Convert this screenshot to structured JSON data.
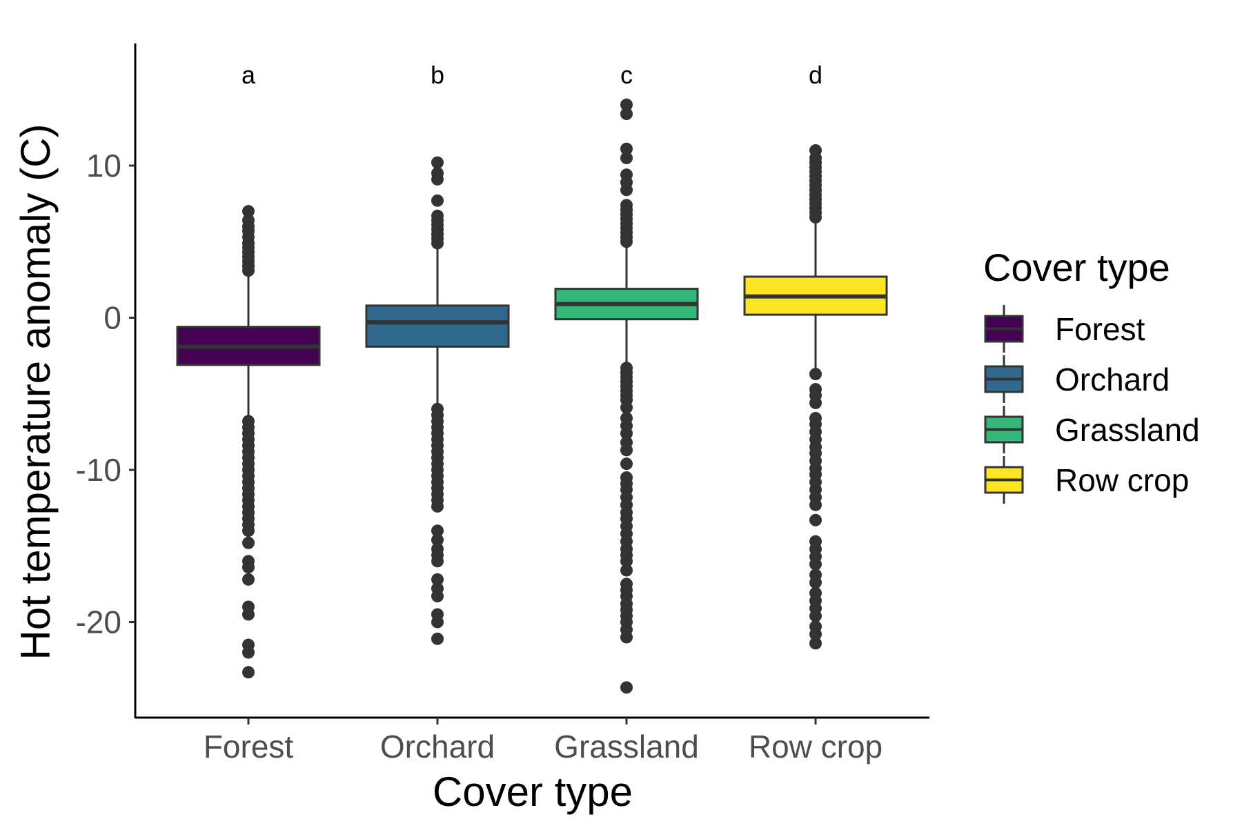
{
  "chart_data": {
    "type": "box",
    "xlabel": "Cover type",
    "ylabel": "Hot temperature anomaly (C)",
    "ylim": [
      -26,
      18
    ],
    "yticks": [
      -20,
      -10,
      0,
      10
    ],
    "ytick_labels": [
      "-20",
      "-10",
      "0",
      "10"
    ],
    "grid": false,
    "legend_position": "right",
    "legend_title": "Cover type",
    "categories": [
      "Forest",
      "Orchard",
      "Grassland",
      "Row crop"
    ],
    "colors": [
      "#440154",
      "#31688E",
      "#35B779",
      "#FDE725"
    ],
    "outline_color": "#333333",
    "outlier_color": "#333333",
    "letters": [
      "a",
      "b",
      "c",
      "d"
    ],
    "boxes": [
      {
        "category": "Forest",
        "q1": -3.1,
        "median": -1.9,
        "q3": -0.6,
        "whisker_low": -6.7,
        "whisker_high": 2.9,
        "outliers_high": [
          3.1,
          3.4,
          3.7,
          4.0,
          4.3,
          4.6,
          4.9,
          5.3,
          5.7,
          6.0,
          6.4,
          7.0
        ],
        "outliers_low": [
          -6.8,
          -7.2,
          -7.6,
          -8.0,
          -8.4,
          -8.8,
          -9.2,
          -9.6,
          -10.0,
          -10.4,
          -10.8,
          -11.2,
          -11.6,
          -12.0,
          -12.4,
          -12.8,
          -13.2,
          -13.6,
          -14.0,
          -14.8,
          -16.0,
          -16.4,
          -17.2,
          -19.0,
          -19.5,
          -21.5,
          -22.0,
          -23.3
        ]
      },
      {
        "category": "Orchard",
        "q1": -1.9,
        "median": -0.3,
        "q3": 0.8,
        "whisker_low": -5.9,
        "whisker_high": 4.6,
        "outliers_high": [
          4.9,
          5.2,
          5.5,
          5.8,
          6.1,
          6.4,
          6.7,
          7.7,
          9.1,
          9.5,
          10.2
        ],
        "outliers_low": [
          -6.0,
          -6.4,
          -6.8,
          -7.2,
          -7.6,
          -8.0,
          -8.4,
          -8.8,
          -9.2,
          -9.6,
          -10.0,
          -10.4,
          -10.8,
          -11.2,
          -11.6,
          -12.0,
          -12.4,
          -14.0,
          -14.6,
          -15.2,
          -15.6,
          -16.0,
          -17.2,
          -17.8,
          -18.3,
          -19.5,
          -20.0,
          -21.1
        ]
      },
      {
        "category": "Grassland",
        "q1": -0.1,
        "median": 0.9,
        "q3": 1.9,
        "whisker_low": -3.1,
        "whisker_high": 4.8,
        "outliers_high": [
          5.0,
          5.3,
          5.6,
          5.9,
          6.2,
          6.5,
          6.8,
          7.1,
          7.4,
          8.4,
          8.9,
          9.4,
          10.5,
          11.1,
          13.4,
          14.0
        ],
        "outliers_low": [
          -3.3,
          -3.6,
          -3.9,
          -4.2,
          -4.5,
          -4.8,
          -5.1,
          -5.4,
          -5.9,
          -6.6,
          -7.1,
          -7.6,
          -8.2,
          -8.7,
          -9.6,
          -10.5,
          -10.9,
          -11.3,
          -11.8,
          -12.3,
          -12.8,
          -13.2,
          -13.7,
          -14.2,
          -14.7,
          -15.2,
          -15.6,
          -16.0,
          -16.6,
          -17.5,
          -17.9,
          -18.3,
          -18.8,
          -19.2,
          -19.6,
          -20.0,
          -20.5,
          -21.0,
          -24.3
        ]
      },
      {
        "category": "Row crop",
        "q1": 0.2,
        "median": 1.4,
        "q3": 2.7,
        "whisker_low": -3.6,
        "whisker_high": 6.4,
        "outliers_high": [
          6.6,
          6.9,
          7.2,
          7.5,
          7.8,
          8.1,
          8.4,
          8.7,
          9.0,
          9.3,
          9.6,
          9.9,
          10.2,
          10.5,
          11.0
        ],
        "outliers_low": [
          -3.7,
          -4.7,
          -5.1,
          -5.6,
          -6.6,
          -7.0,
          -7.5,
          -8.0,
          -8.5,
          -8.9,
          -9.4,
          -9.9,
          -10.3,
          -10.8,
          -11.3,
          -11.8,
          -12.3,
          -13.3,
          -14.7,
          -15.2,
          -15.7,
          -16.2,
          -16.9,
          -17.4,
          -18.1,
          -18.6,
          -19.1,
          -19.6,
          -20.3,
          -20.8,
          -21.4
        ]
      }
    ]
  }
}
